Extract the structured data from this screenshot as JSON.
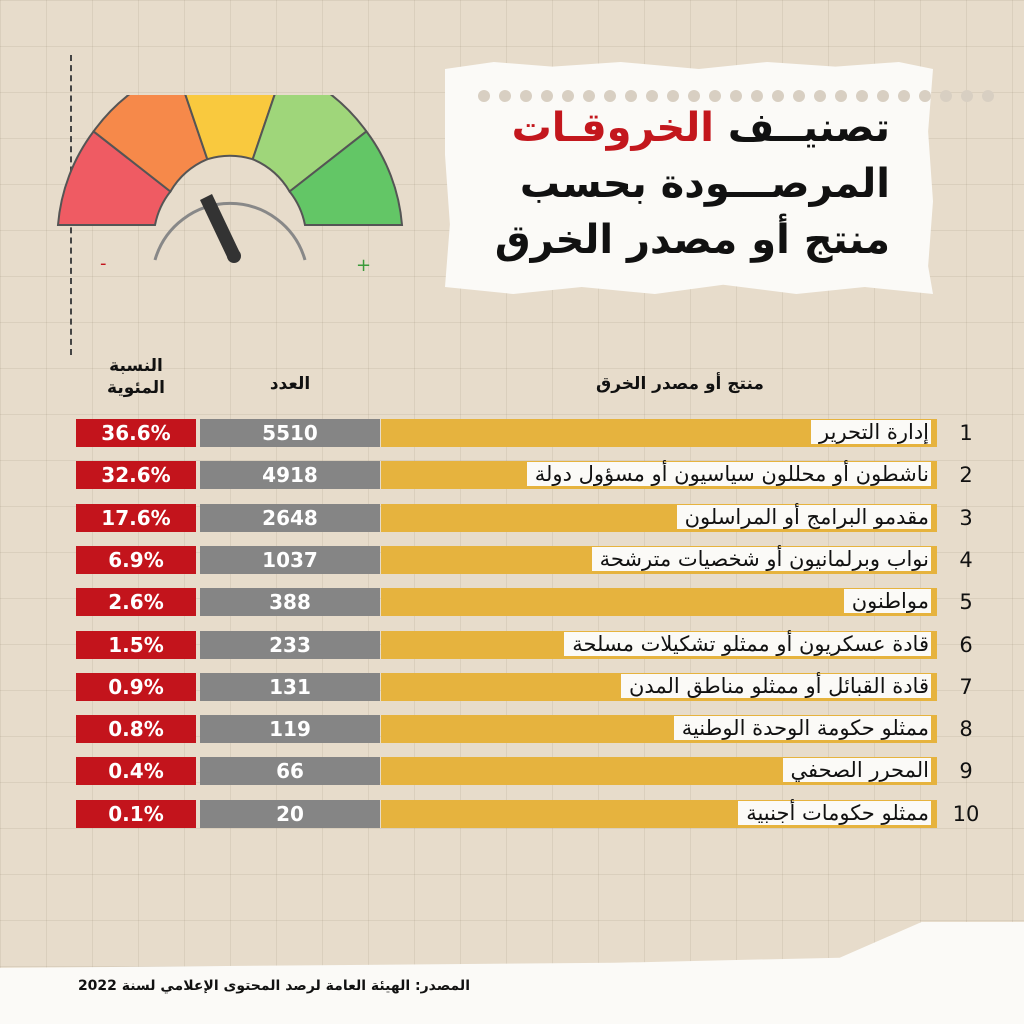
{
  "title": {
    "part1": "تصنيــف",
    "highlight": "الخروقـات",
    "line2": "المرصـــودة بحسب",
    "line3": "منتج أو مصدر الخرق"
  },
  "gauge": {
    "minus_label": "-",
    "plus_label": "+"
  },
  "headers": {
    "percent": "النسبة المئوية",
    "count": "العدد",
    "source": "منتج أو مصدر الخرق"
  },
  "colors": {
    "percent_cell": "#c3141c",
    "count_cell": "#858585",
    "bar": "#e6b33e",
    "title_highlight": "#c3171d"
  },
  "chart_data": {
    "type": "table",
    "title": "تصنيف الخروقات المرصودة بحسب منتج أو مصدر الخرق",
    "columns": [
      "النسبة المئوية",
      "العدد",
      "منتج أو مصدر الخرق"
    ],
    "rows": [
      {
        "rank": "1",
        "label": "إدارة التحرير",
        "count": "5510",
        "percent": "36.6%"
      },
      {
        "rank": "2",
        "label": "ناشطون أو محللون سياسيون أو مسؤول دولة",
        "count": "4918",
        "percent": "32.6%"
      },
      {
        "rank": "3",
        "label": "مقدمو البرامج أو المراسلون",
        "count": "2648",
        "percent": "17.6%"
      },
      {
        "rank": "4",
        "label": "نواب وبرلمانيون أو شخصيات مترشحة",
        "count": "1037",
        "percent": "6.9%"
      },
      {
        "rank": "5",
        "label": "مواطنون",
        "count": "388",
        "percent": "2.6%"
      },
      {
        "rank": "6",
        "label": "قادة عسكريون أو ممثلو تشكيلات مسلحة",
        "count": "233",
        "percent": "1.5%"
      },
      {
        "rank": "7",
        "label": "قادة القبائل أو ممثلو مناطق المدن",
        "count": "131",
        "percent": "0.9%"
      },
      {
        "rank": "8",
        "label": "ممثلو حكومة الوحدة الوطنية",
        "count": "119",
        "percent": "0.8%"
      },
      {
        "rank": "9",
        "label": "المحرر الصحفي",
        "count": "66",
        "percent": "0.4%"
      },
      {
        "rank": "10",
        "label": "ممثلو حكومات أجنبية",
        "count": "20",
        "percent": "0.1%"
      }
    ]
  },
  "footer": {
    "source": "المصدر: الهيئة العامة لرصد المحتوى الإعلامي لسنة 2022"
  }
}
